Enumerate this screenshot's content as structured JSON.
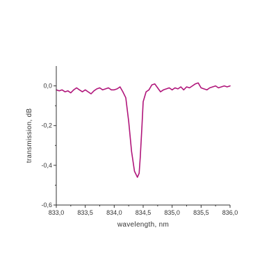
{
  "colors": {
    "axis": "#333333",
    "series": "#b0157a",
    "background": "#ffffff"
  },
  "chart_data": {
    "type": "line",
    "xlabel": "wavelength, nm",
    "ylabel": "transmission, dB",
    "xlim": [
      833.0,
      836.0
    ],
    "ylim": [
      -0.6,
      0.1
    ],
    "grid": false,
    "x_ticks": [
      {
        "value": 833.0,
        "label": "833,0"
      },
      {
        "value": 833.5,
        "label": "833,5"
      },
      {
        "value": 834.0,
        "label": "834,0"
      },
      {
        "value": 834.5,
        "label": "834,5"
      },
      {
        "value": 835.0,
        "label": "835,0"
      },
      {
        "value": 835.5,
        "label": "835,5"
      },
      {
        "value": 836.0,
        "label": "836,0"
      }
    ],
    "y_ticks": [
      {
        "value": 0.0,
        "label": "0,0"
      },
      {
        "value": -0.2,
        "label": "-0,2"
      },
      {
        "value": -0.4,
        "label": "-0,4"
      },
      {
        "value": -0.6,
        "label": "-0,6"
      }
    ],
    "series": [
      {
        "x": [
          833.0,
          833.05,
          833.1,
          833.15,
          833.2,
          833.25,
          833.3,
          833.35,
          833.4,
          833.45,
          833.5,
          833.55,
          833.6,
          833.65,
          833.7,
          833.75,
          833.8,
          833.85,
          833.9,
          833.95,
          834.0,
          834.05,
          834.1,
          834.15,
          834.2,
          834.25,
          834.3,
          834.35,
          834.4,
          834.43,
          834.45,
          834.48,
          834.5,
          834.55,
          834.6,
          834.65,
          834.7,
          834.75,
          834.8,
          834.85,
          834.9,
          834.95,
          835.0,
          835.05,
          835.1,
          835.15,
          835.2,
          835.25,
          835.3,
          835.35,
          835.4,
          835.45,
          835.5,
          835.55,
          835.6,
          835.65,
          835.7,
          835.75,
          835.8,
          835.85,
          835.9,
          835.95,
          836.0
        ],
        "y": [
          -0.02,
          -0.025,
          -0.02,
          -0.03,
          -0.025,
          -0.035,
          -0.02,
          -0.01,
          -0.02,
          -0.03,
          -0.02,
          -0.03,
          -0.04,
          -0.025,
          -0.015,
          -0.01,
          -0.02,
          -0.015,
          -0.01,
          -0.02,
          -0.02,
          -0.015,
          -0.005,
          -0.03,
          -0.06,
          -0.18,
          -0.33,
          -0.43,
          -0.46,
          -0.44,
          -0.36,
          -0.2,
          -0.08,
          -0.03,
          -0.02,
          0.005,
          0.01,
          -0.01,
          -0.03,
          -0.02,
          -0.015,
          -0.01,
          -0.02,
          -0.01,
          -0.015,
          -0.005,
          -0.02,
          -0.005,
          -0.01,
          0.0,
          0.01,
          0.015,
          -0.01,
          -0.015,
          -0.02,
          -0.01,
          -0.005,
          0.0,
          -0.01,
          -0.005,
          0.0,
          -0.005,
          0.0
        ]
      }
    ]
  }
}
